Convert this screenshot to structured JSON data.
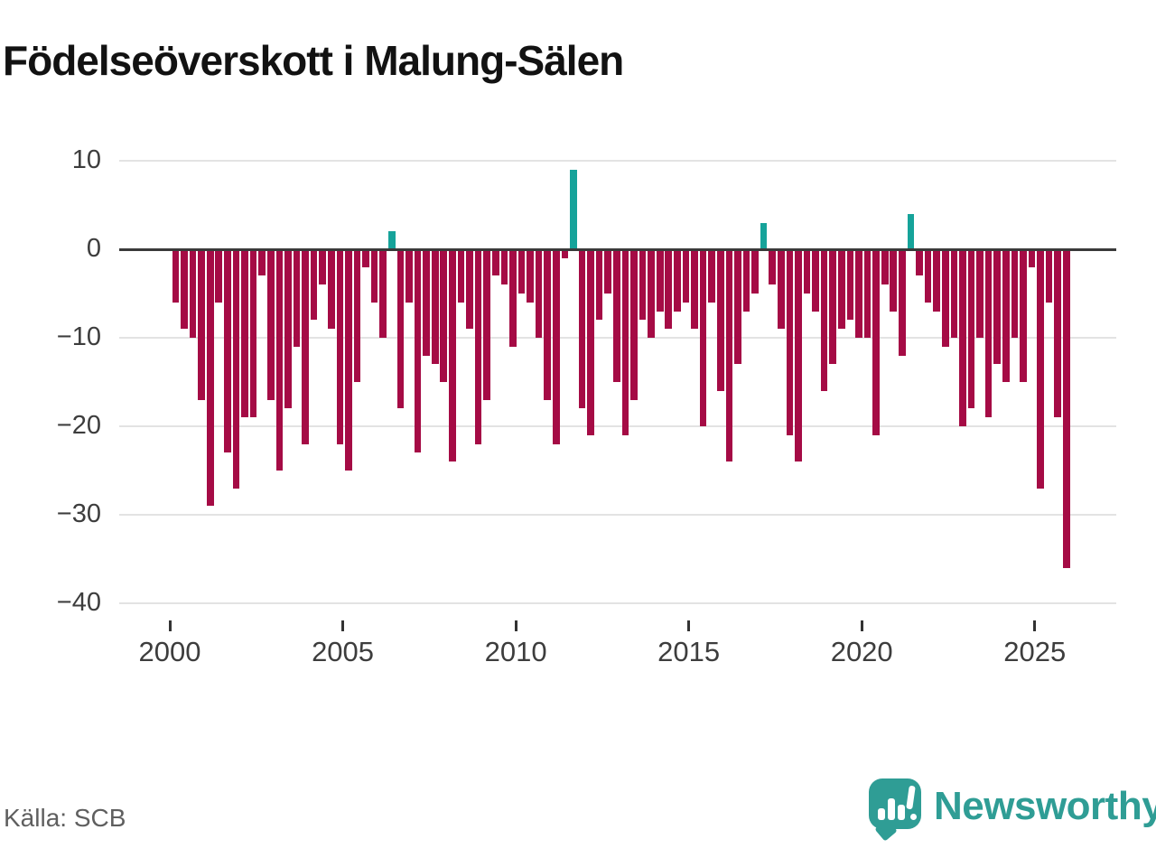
{
  "header": {
    "title": "Födelseöverskott i Malung-Sälen"
  },
  "footer": {
    "source": "Källa: SCB",
    "brand": "Newsworthy",
    "brand_icon": "bar-chart-speech-bubble-icon"
  },
  "chart_data": {
    "type": "bar",
    "title": "Födelseöverskott i Malung-Sälen",
    "frequency": "quarterly",
    "start": "2000-Q1",
    "end": "2025-Q4",
    "xlabel": "",
    "ylabel": "",
    "ylim": [
      -40,
      10
    ],
    "grid": "horizontal",
    "legend": "none",
    "y_ticks": [
      10,
      0,
      -10,
      -20,
      -30,
      -40
    ],
    "y_tick_labels": [
      "10",
      "0",
      "−10",
      "−20",
      "−30",
      "−40"
    ],
    "x_tick_years": [
      2000,
      2005,
      2010,
      2015,
      2020,
      2025
    ],
    "x_tick_labels": [
      "2000",
      "2005",
      "2010",
      "2015",
      "2020",
      "2025"
    ],
    "colors": {
      "negative": "#a50b45",
      "positive": "#16a39a",
      "zero_line": "#3a3a3a",
      "gridline": "#e3e3e3"
    },
    "series": [
      {
        "name": "Födelseöverskott",
        "values": [
          -6,
          -9,
          -10,
          -17,
          -29,
          -6,
          -23,
          -27,
          -19,
          -19,
          -3,
          -17,
          -25,
          -18,
          -11,
          -22,
          -8,
          -4,
          -9,
          -22,
          -25,
          -15,
          -2,
          -6,
          -10,
          2,
          -18,
          -6,
          -23,
          -12,
          -13,
          -15,
          -24,
          -6,
          -9,
          -22,
          -17,
          -3,
          -4,
          -11,
          -5,
          -6,
          -10,
          -17,
          -22,
          -1,
          9,
          -18,
          -21,
          -8,
          -5,
          -15,
          -21,
          -17,
          -8,
          -10,
          -7,
          -9,
          -7,
          -6,
          -9,
          -20,
          -6,
          -16,
          -24,
          -13,
          -7,
          -5,
          3,
          -4,
          -9,
          -21,
          -24,
          -5,
          -7,
          -16,
          -13,
          -9,
          -8,
          -10,
          -10,
          -21,
          -4,
          -7,
          -12,
          4,
          -3,
          -6,
          -7,
          -11,
          -10,
          -20,
          -18,
          -10,
          -19,
          -13,
          -15,
          -10,
          -15,
          -2,
          -27,
          -6,
          -19,
          -36
        ]
      }
    ]
  }
}
